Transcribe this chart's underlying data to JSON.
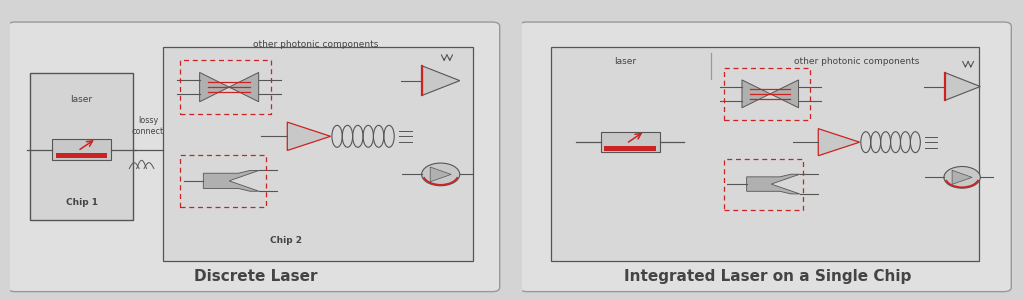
{
  "bg_color": "#d4d4d4",
  "panel_bg": "#e0e0e0",
  "border_color": "#aaaaaa",
  "red_color": "#cc2222",
  "dark_gray": "#555555",
  "light_gray": "#c8c8c8",
  "med_gray": "#b0b0b0",
  "text_color": "#444444",
  "title_left": "Discrete Laser",
  "title_right": "Integrated Laser on a Single Chip",
  "label_chip1": "Chip 1",
  "label_chip2": "Chip 2",
  "label_laser_left": "laser",
  "label_lossy": "lossy\nconnect",
  "label_other_left": "other photonic components",
  "label_other_right": "other photonic components",
  "label_laser_right": "laser"
}
